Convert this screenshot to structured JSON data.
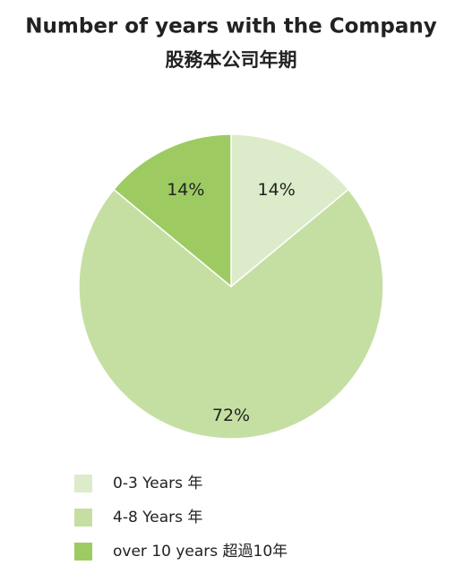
{
  "chart_data": {
    "type": "pie",
    "title": "Number of years with the Company",
    "subtitle": "股務本公司年期",
    "categories": [
      "0-3 Years 年",
      "4-8 Years 年",
      "over 10 years 超過10年"
    ],
    "values": [
      14,
      72,
      14
    ],
    "value_labels": [
      "14%",
      "72%",
      "14%"
    ],
    "colors": [
      "#dcebc9",
      "#c5dfa3",
      "#9dcb62"
    ]
  }
}
